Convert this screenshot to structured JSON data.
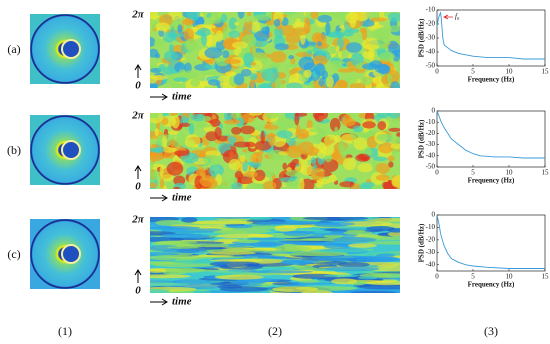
{
  "figure": {
    "row_labels": [
      "(a)",
      "(b)",
      "(c)"
    ],
    "column_labels": [
      "(1)",
      "(2)",
      "(3)"
    ],
    "map_top": "2π",
    "map_bottom": "0",
    "map_time": "time"
  },
  "chart_data": [
    {
      "type": "line",
      "ylabel": "PSD (dB/Hz)",
      "xlabel": "Frequency (Hz)",
      "annotation": "f₀",
      "color": "#3a9ad9",
      "x": [
        0,
        0.2,
        0.4,
        0.5,
        0.6,
        0.8,
        1,
        1.5,
        2,
        3,
        4,
        5,
        7,
        10,
        12,
        15
      ],
      "values": [
        -22,
        -16,
        -13,
        -12,
        -16,
        -30,
        -35,
        -37,
        -39,
        -41,
        -42,
        -43,
        -44,
        -44,
        -45,
        -45
      ],
      "xlim": [
        0,
        15
      ],
      "xticks": [
        0,
        5,
        10,
        15
      ],
      "ylim": [
        -50,
        -10
      ],
      "yticks": [
        -10,
        -20,
        -30,
        -40,
        -50
      ]
    },
    {
      "type": "line",
      "ylabel": "PSD (dB/Hz)",
      "xlabel": "Frequency (Hz)",
      "color": "#3a9ad9",
      "x": [
        0,
        0.3,
        0.6,
        1,
        1.5,
        2,
        3,
        4,
        5,
        6,
        8,
        10,
        12,
        15
      ],
      "values": [
        0,
        -5,
        -10,
        -15,
        -20,
        -25,
        -30,
        -35,
        -38,
        -40,
        -41,
        -41,
        -42,
        -42
      ],
      "xlim": [
        0,
        15
      ],
      "xticks": [
        0,
        5,
        10,
        15
      ],
      "ylim": [
        -50,
        0
      ],
      "yticks": [
        0,
        -10,
        -20,
        -30,
        -40,
        -50
      ]
    },
    {
      "type": "line",
      "ylabel": "PSD (dB/Hz)",
      "xlabel": "Frequency (Hz)",
      "color": "#3a9ad9",
      "x": [
        0,
        0.3,
        0.5,
        1,
        1.5,
        2,
        3,
        4,
        5,
        7,
        10,
        12,
        15
      ],
      "values": [
        0,
        -8,
        -15,
        -25,
        -31,
        -35,
        -38,
        -40,
        -41,
        -42,
        -43,
        -43,
        -43
      ],
      "xlim": [
        0,
        15
      ],
      "xticks": [
        0,
        5,
        10,
        15
      ],
      "ylim": [
        -45,
        0
      ],
      "yticks": [
        0,
        -10,
        -20,
        -30,
        -40
      ]
    }
  ]
}
